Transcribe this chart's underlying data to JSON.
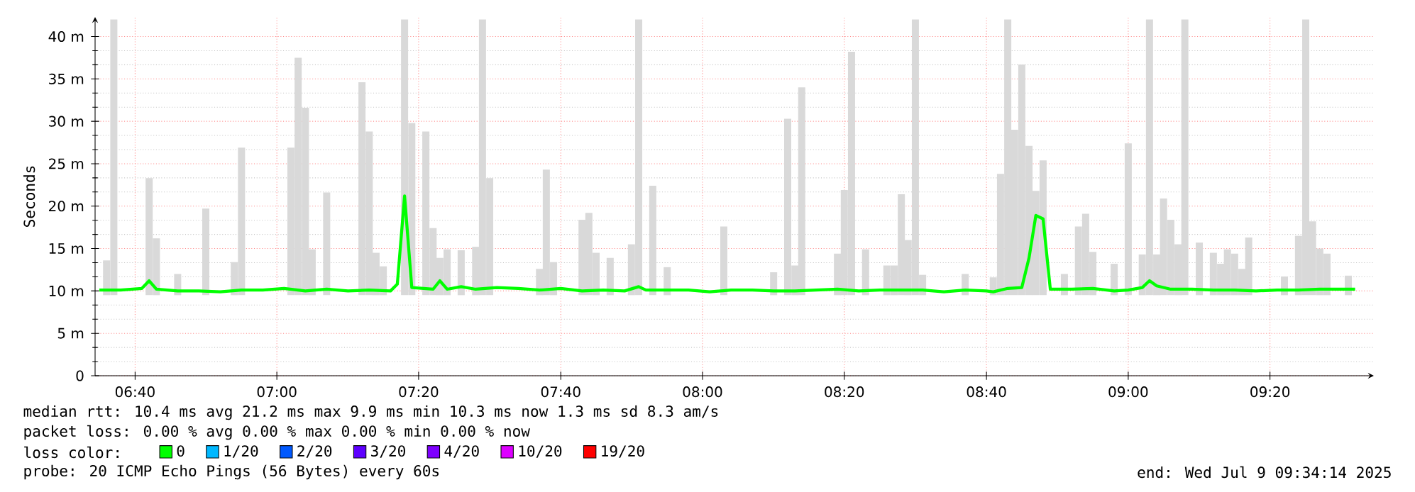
{
  "chart_data": {
    "type": "line",
    "ylabel": "Seconds",
    "xlim": [
      6.573,
      9.577
    ],
    "ylim": [
      0,
      42.3
    ],
    "xticks": [
      {
        "value": 6.667,
        "label": "06:40"
      },
      {
        "value": 7,
        "label": "07:00"
      },
      {
        "value": 7.333,
        "label": "07:20"
      },
      {
        "value": 7.667,
        "label": "07:40"
      },
      {
        "value": 8,
        "label": "08:00"
      },
      {
        "value": 8.333,
        "label": "08:20"
      },
      {
        "value": 8.667,
        "label": "08:40"
      },
      {
        "value": 9,
        "label": "09:00"
      },
      {
        "value": 9.333,
        "label": "09:20"
      }
    ],
    "yticks": [
      0,
      {
        "value": 5,
        "label": "5 m"
      },
      {
        "value": 10,
        "label": "10 m"
      },
      {
        "value": 15,
        "label": "15 m"
      },
      {
        "value": 20,
        "label": "20 m"
      },
      {
        "value": 25,
        "label": "25 m"
      },
      {
        "value": 30,
        "label": "30 m"
      },
      {
        "value": 35,
        "label": "35 m"
      },
      {
        "value": 40,
        "label": "40 m"
      }
    ],
    "grid": true,
    "legend": "bottom",
    "legend_title": "loss color:",
    "series": [
      {
        "type": "bar",
        "color": "#d9d9d9",
        "base": [
          9.5,
          9.5,
          9.5,
          9.5,
          9.5,
          9.5,
          9.5,
          9.5,
          9.5,
          9.5,
          9.5,
          9.5,
          9.5,
          9.5,
          9.5,
          9.5,
          9.5,
          9.5,
          9.5,
          9.5,
          9.5,
          9.5,
          9.5,
          9.5,
          9.5,
          9.5,
          9.5,
          9.5,
          9.5,
          9.5,
          9.5,
          9.5,
          9.5,
          9.5,
          9.5,
          9.5,
          9.5,
          9.5,
          9.5,
          9.5,
          9.5,
          9.5,
          9.5,
          9.5,
          9.5,
          9.5,
          9.5,
          9.5,
          9.5,
          9.5,
          9.5,
          9.5,
          9.5,
          9.5,
          9.5,
          9.5,
          9.5,
          9.5,
          9.5,
          9.5,
          9.5,
          9.5,
          9.5,
          9.5,
          9.5,
          9.5,
          9.5,
          9.5,
          9.5,
          9.5,
          9.5,
          9.5,
          9.5,
          9.5,
          9.5,
          9.5,
          9.5,
          9.5,
          9.5,
          9.5,
          9.5,
          9.5,
          9.5,
          9.5,
          9.5,
          9.5,
          9.5,
          9.5,
          9.5
        ],
        "x": [
          6.6,
          6.617,
          6.7,
          6.717,
          6.767,
          6.833,
          6.9,
          6.917,
          7.033,
          7.05,
          7.067,
          7.083,
          7.117,
          7.2,
          7.217,
          7.233,
          7.25,
          7.3,
          7.317,
          7.35,
          7.367,
          7.383,
          7.4,
          7.433,
          7.467,
          7.483,
          7.5,
          7.617,
          7.633,
          7.65,
          7.717,
          7.733,
          7.75,
          7.783,
          7.833,
          7.85,
          7.883,
          7.917,
          8.05,
          8.167,
          8.2,
          8.217,
          8.233,
          8.317,
          8.333,
          8.35,
          8.383,
          8.433,
          8.45,
          8.467,
          8.483,
          8.5,
          8.517,
          8.617,
          8.683,
          8.7,
          8.717,
          8.733,
          8.75,
          8.767,
          8.783,
          8.8,
          8.85,
          8.883,
          8.9,
          8.917,
          8.967,
          9.0,
          9.033,
          9.05,
          9.067,
          9.083,
          9.1,
          9.117,
          9.133,
          9.167,
          9.2,
          9.217,
          9.233,
          9.25,
          9.267,
          9.283,
          9.367,
          9.4,
          9.417,
          9.433,
          9.45,
          9.467,
          9.517
        ],
        "values": [
          4.1,
          32.5,
          13.8,
          6.7,
          2.5,
          10.2,
          3.9,
          17.4,
          17.4,
          28,
          22.1,
          5.4,
          12.1,
          25.1,
          19.3,
          5,
          3.4,
          32.5,
          20.3,
          19.3,
          7.9,
          4.4,
          5.4,
          5.3,
          5.7,
          32.5,
          13.8,
          3.1,
          14.8,
          3.9,
          8.9,
          9.7,
          5,
          4.4,
          6,
          32.5,
          12.9,
          3.3,
          8.1,
          2.7,
          20.8,
          3.5,
          24.5,
          4.9,
          12.4,
          28.7,
          5.4,
          3.5,
          3.5,
          11.9,
          6.5,
          32.5,
          2.4,
          2.5,
          2.1,
          14.3,
          32.5,
          19.5,
          27.2,
          17.6,
          12.3,
          15.9,
          2.5,
          8.1,
          9.6,
          5.1,
          3.7,
          17.9,
          4.8,
          32.5,
          4.8,
          11.4,
          8.9,
          6,
          32.5,
          6.2,
          5,
          3.7,
          5.4,
          4.9,
          3.1,
          6.8,
          2.2,
          7,
          32.5,
          8.7,
          5.5,
          4.9,
          2.3
        ]
      },
      {
        "name": "0",
        "color": "#00ff00",
        "x": [
          6.583,
          6.633,
          6.683,
          6.7,
          6.717,
          6.767,
          6.817,
          6.867,
          6.917,
          6.967,
          7.017,
          7.067,
          7.117,
          7.167,
          7.217,
          7.267,
          7.283,
          7.3,
          7.317,
          7.367,
          7.383,
          7.4,
          7.433,
          7.467,
          7.517,
          7.567,
          7.617,
          7.667,
          7.717,
          7.767,
          7.817,
          7.85,
          7.867,
          7.917,
          7.967,
          8.017,
          8.067,
          8.117,
          8.167,
          8.217,
          8.267,
          8.317,
          8.367,
          8.417,
          8.467,
          8.517,
          8.567,
          8.617,
          8.667,
          8.683,
          8.717,
          8.75,
          8.767,
          8.783,
          8.8,
          8.817,
          8.867,
          8.917,
          8.967,
          9.0,
          9.033,
          9.05,
          9.067,
          9.1,
          9.15,
          9.2,
          9.25,
          9.3,
          9.35,
          9.4,
          9.45,
          9.5,
          9.533
        ],
        "values": [
          10.1,
          10.1,
          10.3,
          11.2,
          10.2,
          10.0,
          10.0,
          9.9,
          10.1,
          10.1,
          10.3,
          10.0,
          10.2,
          10.0,
          10.1,
          10.0,
          10.8,
          21.2,
          10.4,
          10.2,
          11.2,
          10.2,
          10.5,
          10.2,
          10.4,
          10.3,
          10.1,
          10.3,
          10.0,
          10.1,
          10.0,
          10.5,
          10.1,
          10.1,
          10.1,
          9.9,
          10.1,
          10.1,
          10.0,
          10.0,
          10.1,
          10.2,
          10.0,
          10.1,
          10.1,
          10.1,
          9.9,
          10.1,
          10.0,
          9.9,
          10.3,
          10.4,
          13.9,
          18.9,
          18.5,
          10.2,
          10.2,
          10.3,
          10.0,
          10.1,
          10.4,
          11.2,
          10.6,
          10.2,
          10.2,
          10.1,
          10.1,
          10.0,
          10.1,
          10.1,
          10.2,
          10.2,
          10.2
        ]
      },
      {
        "name": "1/20",
        "color": "#00b8ff"
      },
      {
        "name": "2/20",
        "color": "#0059ff"
      },
      {
        "name": "3/20",
        "color": "#5e00ff"
      },
      {
        "name": "4/20",
        "color": "#7e00ff"
      },
      {
        "name": "10/20",
        "color": "#dd00ff"
      },
      {
        "name": "19/20",
        "color": "#ff0000"
      }
    ],
    "annotations": [
      "median rtt: 10.4 ms avg 21.2 ms max 9.9 ms min 10.3 ms now 1.3 ms sd 8.3 am/s",
      "packet loss: 0.00 % avg 0.00 % max 0.00 % min 0.00 % now",
      "probe: 20 ICMP Echo Pings (56 Bytes) every 60s",
      "end: Wed Jul 9 09:34:14 2025"
    ]
  }
}
